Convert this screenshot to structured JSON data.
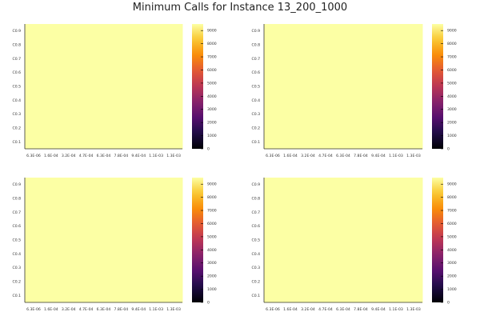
{
  "title": "Minimum Calls for Instance 13_200_1000",
  "chart_data": [
    {
      "type": "heatmap",
      "x_ticks": [
        "6.3E-06",
        "1.6E-04",
        "3.2E-04",
        "4.7E-04",
        "6.3E-04",
        "7.8E-04",
        "9.4E-04",
        "1.1E-03",
        "1.3E-03"
      ],
      "y_ticks": [
        "C0.1",
        "C0.2",
        "C0.3",
        "C0.4",
        "C0.5",
        "C0.6",
        "C0.7",
        "C0.8",
        "C0.9"
      ],
      "cell_value": 9500,
      "colorbar": {
        "colormap": "inferno",
        "range": [
          0,
          9500
        ],
        "ticks": [
          0,
          1000,
          2000,
          3000,
          4000,
          5000,
          6000,
          7000,
          8000,
          9000
        ]
      }
    },
    {
      "type": "heatmap",
      "x_ticks": [
        "6.3E-06",
        "1.6E-04",
        "3.2E-04",
        "4.7E-04",
        "6.3E-04",
        "7.8E-04",
        "9.4E-04",
        "1.1E-03",
        "1.3E-03"
      ],
      "y_ticks": [
        "C0.1",
        "C0.2",
        "C0.3",
        "C0.4",
        "C0.5",
        "C0.6",
        "C0.7",
        "C0.8",
        "C0.9"
      ],
      "cell_value": 9500,
      "colorbar": {
        "colormap": "inferno",
        "range": [
          0,
          9500
        ],
        "ticks": [
          0,
          1000,
          2000,
          3000,
          4000,
          5000,
          6000,
          7000,
          8000,
          9000
        ]
      }
    },
    {
      "type": "heatmap",
      "x_ticks": [
        "6.3E-06",
        "1.6E-04",
        "3.2E-04",
        "4.7E-04",
        "6.3E-04",
        "7.8E-04",
        "9.4E-04",
        "1.1E-03",
        "1.3E-03"
      ],
      "y_ticks": [
        "C0.1",
        "C0.2",
        "C0.3",
        "C0.4",
        "C0.5",
        "C0.6",
        "C0.7",
        "C0.8",
        "C0.9"
      ],
      "cell_value": 9500,
      "colorbar": {
        "colormap": "inferno",
        "range": [
          0,
          9500
        ],
        "ticks": [
          0,
          1000,
          2000,
          3000,
          4000,
          5000,
          6000,
          7000,
          8000,
          9000
        ]
      }
    },
    {
      "type": "heatmap",
      "x_ticks": [
        "6.3E-06",
        "1.6E-04",
        "3.2E-04",
        "4.7E-04",
        "6.3E-04",
        "7.8E-04",
        "9.4E-04",
        "1.1E-03",
        "1.3E-03"
      ],
      "y_ticks": [
        "C0.1",
        "C0.2",
        "C0.3",
        "C0.4",
        "C0.5",
        "C0.6",
        "C0.7",
        "C0.8",
        "C0.9"
      ],
      "cell_value": 9500,
      "colorbar": {
        "colormap": "inferno",
        "range": [
          0,
          9500
        ],
        "ticks": [
          0,
          1000,
          2000,
          3000,
          4000,
          5000,
          6000,
          7000,
          8000,
          9000
        ]
      }
    }
  ]
}
